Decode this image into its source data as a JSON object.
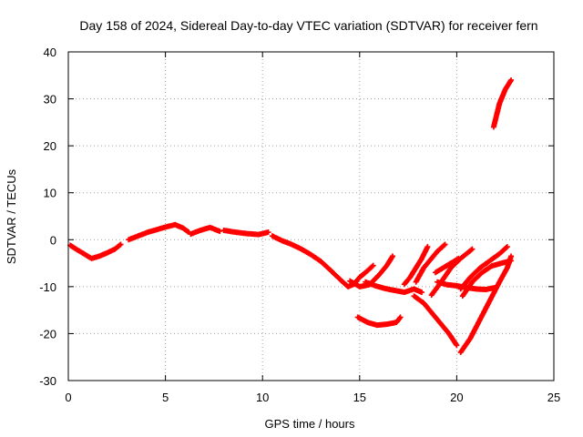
{
  "chart_data": {
    "type": "scatter",
    "title": "Day 158 of 2024, Sidereal Day-to-day VTEC variation (SDTVAR) for receiver fern",
    "xlabel": "GPS time / hours",
    "ylabel": "SDTVAR / TECUs",
    "xlim": [
      0,
      25
    ],
    "ylim": [
      -30,
      40
    ],
    "xticks": [
      0,
      5,
      10,
      15,
      20,
      25
    ],
    "yticks": [
      -30,
      -20,
      -10,
      0,
      10,
      20,
      30,
      40
    ],
    "xtick_labels": [
      "0",
      "5",
      "10",
      "15",
      "20",
      "25"
    ],
    "ytick_labels": [
      "-30",
      "-20",
      "-10",
      "0",
      "10",
      "20",
      "30",
      "40"
    ],
    "grid": true,
    "legend": "none",
    "marker": "plus",
    "color": "#ff0000",
    "series": [
      {
        "name": "track-1",
        "x": [
          0.1,
          0.4,
          0.8,
          1.2,
          1.6,
          2.0,
          2.4,
          2.7
        ],
        "y": [
          -1.2,
          -2.0,
          -3.0,
          -4.0,
          -3.5,
          -2.8,
          -2.0,
          -1.0
        ]
      },
      {
        "name": "track-2",
        "x": [
          3.1,
          3.6,
          4.1,
          4.6,
          5.1,
          5.5,
          5.9,
          6.2
        ],
        "y": [
          0.0,
          0.8,
          1.6,
          2.2,
          2.8,
          3.2,
          2.5,
          1.6
        ]
      },
      {
        "name": "track-3",
        "x": [
          6.3,
          6.8,
          7.3,
          7.8
        ],
        "y": [
          1.2,
          2.0,
          2.6,
          1.8
        ]
      },
      {
        "name": "track-4",
        "x": [
          8.0,
          8.6,
          9.2,
          9.8,
          10.3
        ],
        "y": [
          2.0,
          1.6,
          1.3,
          1.1,
          1.6
        ]
      },
      {
        "name": "track-5",
        "x": [
          10.5,
          11.0,
          11.5,
          12.0,
          12.5,
          13.0,
          13.5,
          14.0,
          14.4,
          14.7,
          15.0,
          15.3,
          15.7
        ],
        "y": [
          0.8,
          -0.2,
          -1.0,
          -2.0,
          -3.2,
          -4.6,
          -6.5,
          -8.5,
          -10.0,
          -9.5,
          -8.0,
          -7.0,
          -5.5
        ]
      },
      {
        "name": "track-6",
        "x": [
          14.5,
          15.0,
          15.5,
          16.0,
          16.4,
          16.7
        ],
        "y": [
          -8.8,
          -10.0,
          -9.6,
          -7.5,
          -5.5,
          -3.5
        ]
      },
      {
        "name": "track-7",
        "x": [
          15.3,
          15.8,
          16.3,
          16.8,
          17.3,
          17.8,
          18.2
        ],
        "y": [
          -9.0,
          -9.8,
          -10.4,
          -10.8,
          -11.2,
          -10.5,
          -11.2
        ]
      },
      {
        "name": "track-8",
        "x": [
          14.9,
          15.4,
          15.9,
          16.4,
          16.9,
          17.1
        ],
        "y": [
          -16.5,
          -17.6,
          -18.2,
          -18.0,
          -17.6,
          -16.5
        ]
      },
      {
        "name": "track-9",
        "x": [
          17.3,
          17.6,
          17.9,
          18.2,
          18.5
        ],
        "y": [
          -9.5,
          -8.0,
          -6.0,
          -4.0,
          -1.5
        ]
      },
      {
        "name": "track-10",
        "x": [
          17.8,
          18.3,
          18.8,
          19.3,
          19.6,
          20.0
        ],
        "y": [
          -12.0,
          -13.5,
          -16.0,
          -18.5,
          -20.0,
          -22.5
        ]
      },
      {
        "name": "track-11",
        "x": [
          17.9,
          18.3,
          18.7,
          19.0,
          19.4
        ],
        "y": [
          -9.0,
          -6.0,
          -4.0,
          -2.5,
          -1.0
        ]
      },
      {
        "name": "track-12",
        "x": [
          19.0,
          19.5,
          20.0,
          20.5,
          21.0,
          21.5,
          22.0
        ],
        "y": [
          -9.0,
          -9.6,
          -9.8,
          -10.2,
          -10.5,
          -10.6,
          -10.2
        ]
      },
      {
        "name": "track-13",
        "x": [
          18.7,
          19.2,
          19.7,
          20.2,
          20.8
        ],
        "y": [
          -11.8,
          -9.0,
          -6.0,
          -4.0,
          -2.0
        ]
      },
      {
        "name": "track-14",
        "x": [
          18.9,
          19.3,
          19.7,
          20.1
        ],
        "y": [
          -7.0,
          -6.0,
          -5.0,
          -4.0
        ]
      },
      {
        "name": "track-15",
        "x": [
          20.2,
          20.7,
          21.2,
          21.7,
          22.2,
          22.6
        ],
        "y": [
          -10.5,
          -8.0,
          -6.0,
          -4.5,
          -3.0,
          -1.5
        ]
      },
      {
        "name": "track-16",
        "x": [
          20.3,
          20.8,
          21.3,
          21.8,
          22.3,
          22.8
        ],
        "y": [
          -12.0,
          -9.0,
          -7.0,
          -5.6,
          -5.0,
          -4.5
        ]
      },
      {
        "name": "track-17",
        "x": [
          20.2,
          20.7,
          21.2,
          21.7,
          22.2,
          22.6,
          22.8
        ],
        "y": [
          -24.0,
          -21.0,
          -17.0,
          -13.0,
          -9.0,
          -6.0,
          -3.5
        ]
      },
      {
        "name": "track-18",
        "x": [
          21.9,
          22.2,
          22.5,
          22.8
        ],
        "y": [
          24.0,
          29.0,
          32.0,
          34.0
        ]
      }
    ]
  }
}
